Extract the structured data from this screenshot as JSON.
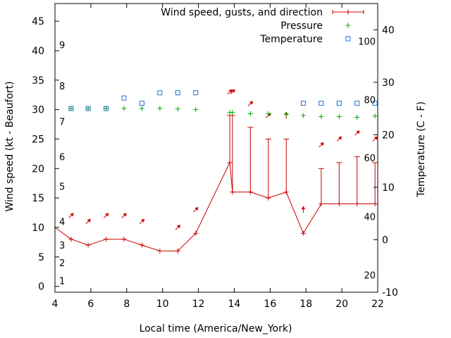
{
  "chart_data": {
    "type": "line",
    "xlabel": "Local time (America/New_York)",
    "ylabel_left": "Wind speed (kt - Beaufort)",
    "ylabel_right": "Temperature (C - F)",
    "xlim": [
      4,
      22
    ],
    "ylim_left": [
      -1,
      48
    ],
    "ylim_right": [
      -10,
      45
    ],
    "x_ticks": [
      4,
      6,
      8,
      10,
      12,
      14,
      16,
      18,
      20,
      22
    ],
    "y_ticks_left": [
      0,
      5,
      10,
      15,
      20,
      25,
      30,
      35,
      40,
      45
    ],
    "y_ticks_right": [
      -10,
      0,
      10,
      20,
      30,
      40
    ],
    "beaufort_labels": [
      {
        "label": "1",
        "kt": 1
      },
      {
        "label": "2",
        "kt": 4
      },
      {
        "label": "3",
        "kt": 7
      },
      {
        "label": "4",
        "kt": 11
      },
      {
        "label": "5",
        "kt": 17
      },
      {
        "label": "6",
        "kt": 22
      },
      {
        "label": "7",
        "kt": 28
      },
      {
        "label": "8",
        "kt": 34
      },
      {
        "label": "9",
        "kt": 41
      }
    ],
    "fahrenheit_labels": [
      {
        "label": "20",
        "c": -6.7
      },
      {
        "label": "40",
        "c": 4.4
      },
      {
        "label": "60",
        "c": 15.6
      },
      {
        "label": "80",
        "c": 26.7
      },
      {
        "label": "100",
        "c": 37.8
      }
    ],
    "legend": {
      "placement": "top-right",
      "wind_label": "Wind speed, gusts, and direction",
      "pressure_label": "Pressure",
      "temperature_label": "Temperature"
    },
    "colors": {
      "wind": "#cc0000",
      "pressure": "#00aa00",
      "temperature": "#1f6fd0"
    },
    "wind": {
      "x": [
        4,
        4.9,
        5.85,
        6.85,
        7.85,
        8.85,
        9.85,
        10.85,
        11.85,
        13.75,
        13.9,
        14.9,
        15.9,
        16.9,
        17.85,
        18.85,
        19.85,
        20.85,
        21.85,
        22
      ],
      "y": [
        10,
        8,
        7,
        8,
        8,
        7,
        6,
        6,
        9,
        21,
        16,
        16,
        15,
        16,
        9,
        14,
        14,
        14,
        14,
        14
      ]
    },
    "gusts": [
      {
        "x": 13.75,
        "y": 29
      },
      {
        "x": 13.9,
        "y": 29
      },
      {
        "x": 14.9,
        "y": 27
      },
      {
        "x": 15.9,
        "y": 25
      },
      {
        "x": 16.9,
        "y": 25
      },
      {
        "x": 18.85,
        "y": 20
      },
      {
        "x": 19.85,
        "y": 21
      },
      {
        "x": 20.85,
        "y": 22
      },
      {
        "x": 21.85,
        "y": 21
      }
    ],
    "direction_arrows": [
      {
        "x": 4.9,
        "y": 12,
        "dir": "NE"
      },
      {
        "x": 5.85,
        "y": 11,
        "dir": "NE"
      },
      {
        "x": 6.85,
        "y": 12,
        "dir": "NE"
      },
      {
        "x": 7.85,
        "y": 12,
        "dir": "NE"
      },
      {
        "x": 8.85,
        "y": 11,
        "dir": "NE"
      },
      {
        "x": 10.85,
        "y": 10,
        "dir": "NE"
      },
      {
        "x": 11.85,
        "y": 13,
        "dir": "NE"
      },
      {
        "x": 13.75,
        "y": 33,
        "dir": "NE"
      },
      {
        "x": 13.9,
        "y": 33,
        "dir": "NE"
      },
      {
        "x": 14.9,
        "y": 31,
        "dir": "NE"
      },
      {
        "x": 15.9,
        "y": 29,
        "dir": "NE"
      },
      {
        "x": 16.9,
        "y": 29,
        "dir": "N"
      },
      {
        "x": 17.85,
        "y": 13,
        "dir": "N"
      },
      {
        "x": 18.85,
        "y": 24,
        "dir": "NE"
      },
      {
        "x": 19.85,
        "y": 25,
        "dir": "NE"
      },
      {
        "x": 20.85,
        "y": 26,
        "dir": "NE"
      },
      {
        "x": 21.85,
        "y": 25,
        "dir": "NE"
      }
    ],
    "pressure": {
      "x": [
        4.9,
        5.85,
        6.85,
        7.85,
        8.85,
        9.85,
        10.85,
        11.85,
        13.75,
        13.9,
        14.9,
        15.9,
        16.9,
        17.85,
        18.85,
        19.85,
        20.85,
        21.85
      ],
      "y": [
        30.2,
        30.2,
        30.2,
        30.2,
        30.2,
        30.2,
        30.1,
        30.0,
        29.5,
        29.5,
        29.3,
        29.3,
        29.2,
        29.0,
        28.8,
        28.8,
        28.7,
        28.9
      ]
    },
    "temperature": {
      "x": [
        4.9,
        5.85,
        6.85,
        7.85,
        8.85,
        9.85,
        10.85,
        11.85,
        17.85,
        18.85,
        19.85,
        20.85,
        21.85
      ],
      "c": [
        25,
        25,
        25,
        27,
        26,
        28,
        28,
        28,
        26,
        26,
        26,
        26,
        26
      ]
    }
  }
}
